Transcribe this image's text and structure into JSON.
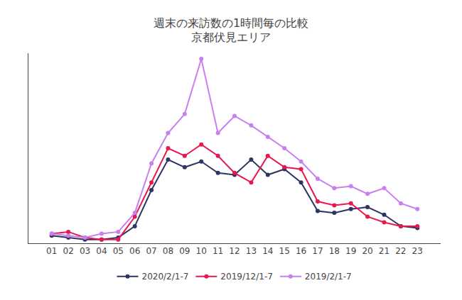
{
  "chart_data": {
    "type": "line",
    "title": "週末の来訪数の1時間毎の比較",
    "subtitle": "京都伏見エリア",
    "categories": [
      "01",
      "02",
      "03",
      "04",
      "05",
      "06",
      "07",
      "08",
      "09",
      "10",
      "11",
      "12",
      "13",
      "14",
      "15",
      "16",
      "17",
      "18",
      "19",
      "20",
      "21",
      "22",
      "23"
    ],
    "series": [
      {
        "name": "2020/2/1-7",
        "color": "#2d3561",
        "marker": "circle",
        "values": [
          4,
          3,
          2,
          2,
          3,
          9,
          28,
          44,
          40,
          43,
          37,
          36,
          44,
          36,
          39,
          32,
          17,
          16,
          18,
          19,
          15,
          9,
          8
        ]
      },
      {
        "name": "2019/12/1-7",
        "color": "#e8174f",
        "marker": "circle",
        "values": [
          5,
          6,
          3,
          2,
          2,
          14,
          32,
          50,
          46,
          52,
          46,
          37,
          32,
          46,
          40,
          39,
          22,
          20,
          21,
          14,
          11,
          9,
          9
        ]
      },
      {
        "name": "2019/2/1-7",
        "color": "#c880f0",
        "marker": "circle",
        "values": [
          5,
          4,
          3,
          5,
          6,
          16,
          42,
          58,
          68,
          97,
          58,
          67,
          62,
          56,
          50,
          43,
          34,
          29,
          30,
          26,
          29,
          21,
          18
        ]
      }
    ],
    "ylim": [
      0,
      100
    ],
    "yticks": [],
    "grid": false,
    "legend": "bottom",
    "tick_labels": "x"
  }
}
